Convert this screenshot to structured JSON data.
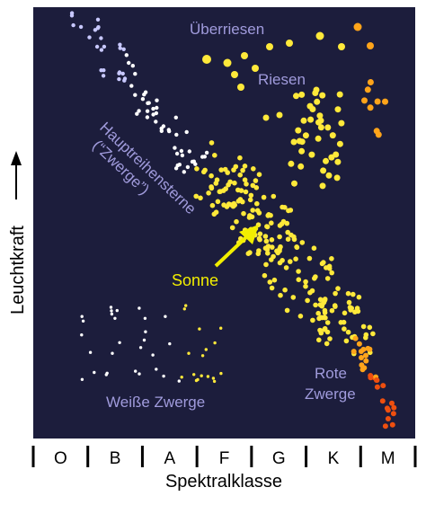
{
  "labels": {
    "supergiants": "Überriesen",
    "giants": "Riesen",
    "main_sequence_line1": "Hauptreihensterne",
    "main_sequence_line2": "(“Zwerge”)",
    "sun": "Sonne",
    "white_dwarfs": "Weiße Zwerge",
    "red_dwarfs_line1": "Rote",
    "red_dwarfs_line2": "Zwerge"
  },
  "axes": {
    "y_label": "Leuchtkraft",
    "x_label": "Spektralklasse",
    "spectral_classes": [
      "O",
      "B",
      "A",
      "F",
      "G",
      "K",
      "M"
    ]
  },
  "colors": {
    "background": "#1c1d3c",
    "label_purple": "#a09bdc",
    "sun_yellow": "#f2ee00",
    "white_star": "#ffffff",
    "blue_white_star": "#c8c8ff",
    "yellow_star": "#ffe93a",
    "orange_star": "#ffa41a",
    "red_star": "#ee4f0f"
  }
}
